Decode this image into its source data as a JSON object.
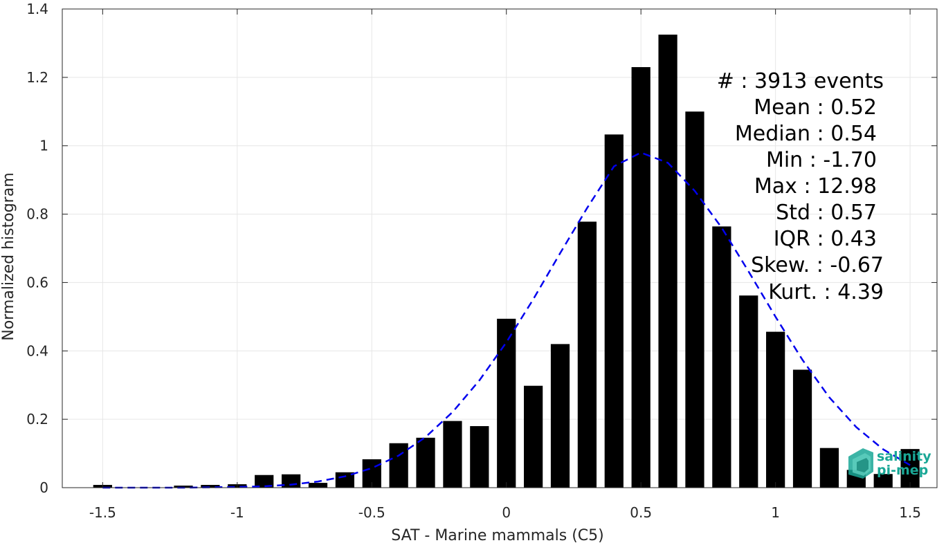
{
  "chart_data": {
    "type": "bar",
    "title": "",
    "xlabel": "SAT - Marine mammals (C5)",
    "ylabel": "Normalized histogram",
    "xlim": [
      -1.65,
      1.6
    ],
    "ylim": [
      0,
      1.4
    ],
    "xticks": [
      -1.5,
      -1,
      -0.5,
      0,
      0.5,
      1,
      1.5
    ],
    "xtick_labels": [
      "-1.5",
      "-1",
      "-0.5",
      "0",
      "0.5",
      "1",
      "1.5"
    ],
    "yticks": [
      0,
      0.2,
      0.4,
      0.6,
      0.8,
      1,
      1.2,
      1.4
    ],
    "ytick_labels": [
      "0",
      "0.2",
      "0.4",
      "0.6",
      "0.8",
      "1",
      "1.2",
      "1.4"
    ],
    "grid": true,
    "bar_color": "#000000",
    "bin_width": 0.1,
    "bars": {
      "x": [
        -1.5,
        -1.4,
        -1.3,
        -1.2,
        -1.1,
        -1.0,
        -0.9,
        -0.8,
        -0.7,
        -0.6,
        -0.5,
        -0.4,
        -0.3,
        -0.2,
        -0.1,
        0.0,
        0.1,
        0.2,
        0.3,
        0.4,
        0.5,
        0.6,
        0.7,
        0.8,
        0.9,
        1.0,
        1.1,
        1.2,
        1.3,
        1.4,
        1.5
      ],
      "values": [
        0.008,
        0.0,
        0.0,
        0.006,
        0.008,
        0.01,
        0.037,
        0.039,
        0.014,
        0.045,
        0.083,
        0.13,
        0.146,
        0.195,
        0.18,
        0.494,
        0.298,
        0.42,
        0.778,
        1.033,
        1.23,
        1.325,
        1.1,
        0.764,
        0.562,
        0.456,
        0.345,
        0.116,
        0.052,
        0.04,
        0.113
      ]
    },
    "fit_curve": {
      "style": "dashed",
      "color": "#0000ee",
      "x": [
        -1.5,
        -1.4,
        -1.3,
        -1.2,
        -1.1,
        -1.0,
        -0.9,
        -0.8,
        -0.7,
        -0.6,
        -0.5,
        -0.4,
        -0.3,
        -0.2,
        -0.1,
        0.0,
        0.1,
        0.2,
        0.3,
        0.4,
        0.5,
        0.6,
        0.7,
        0.8,
        0.9,
        1.0,
        1.1,
        1.2,
        1.3,
        1.4,
        1.5
      ],
      "y": [
        0.0,
        0.0,
        0.0,
        0.0,
        0.001,
        0.002,
        0.004,
        0.009,
        0.018,
        0.033,
        0.057,
        0.094,
        0.148,
        0.221,
        0.314,
        0.425,
        0.551,
        0.686,
        0.818,
        0.94,
        0.98,
        0.95,
        0.868,
        0.76,
        0.632,
        0.5,
        0.374,
        0.264,
        0.177,
        0.112,
        0.066
      ]
    }
  },
  "stats": [
    {
      "label": "#  : 3913 events"
    },
    {
      "label": "Mean : 0.52"
    },
    {
      "label": "Median : 0.54"
    },
    {
      "label": "Min : -1.70"
    },
    {
      "label": "Max : 12.98"
    },
    {
      "label": "Std : 0.57"
    },
    {
      "label": "IQR : 0.43"
    },
    {
      "label": "Skew. : -0.67"
    },
    {
      "label": "Kurt. : 4.39"
    }
  ],
  "logo": {
    "line1": "salinity",
    "line2": "pi-mep",
    "color": "#1aa796"
  }
}
